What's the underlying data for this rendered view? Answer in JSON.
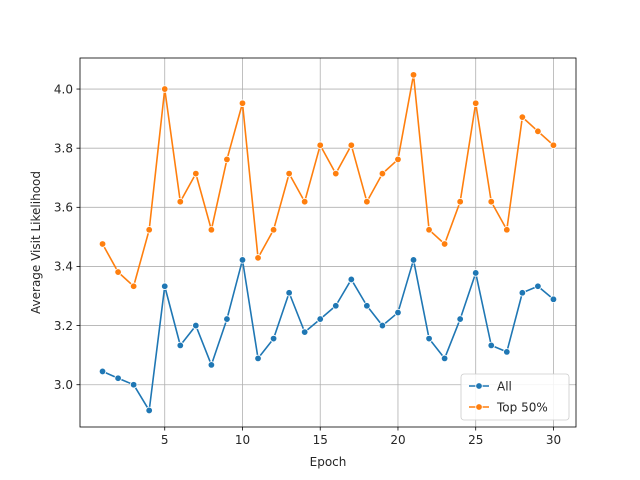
{
  "chart_data": {
    "type": "line",
    "title": "",
    "xlabel": "Epoch",
    "ylabel": "Average Visit Likelihood",
    "x": [
      1,
      2,
      3,
      4,
      5,
      6,
      7,
      8,
      9,
      10,
      11,
      12,
      13,
      14,
      15,
      16,
      17,
      18,
      19,
      20,
      21,
      22,
      23,
      24,
      25,
      26,
      27,
      28,
      29,
      30
    ],
    "series": [
      {
        "name": "All",
        "color": "#1f77b4",
        "marker": "circle",
        "values": [
          3.045,
          3.022,
          3.0,
          2.913,
          3.333,
          3.133,
          3.2,
          3.067,
          3.222,
          3.422,
          3.089,
          3.156,
          3.311,
          3.178,
          3.222,
          3.267,
          3.356,
          3.267,
          3.2,
          3.244,
          3.422,
          3.156,
          3.089,
          3.222,
          3.378,
          3.133,
          3.111,
          3.311,
          3.333,
          3.289
        ]
      },
      {
        "name": "Top 50%",
        "color": "#ff7f0e",
        "marker": "circle",
        "values": [
          3.476,
          3.381,
          3.333,
          3.524,
          4.0,
          3.619,
          3.714,
          3.524,
          3.762,
          3.952,
          3.429,
          3.524,
          3.714,
          3.619,
          3.81,
          3.714,
          3.81,
          3.619,
          3.714,
          3.762,
          4.048,
          3.524,
          3.476,
          3.619,
          3.952,
          3.619,
          3.524,
          3.905,
          3.857,
          3.81
        ]
      }
    ],
    "xlim": [
      -0.45,
      31.45
    ],
    "ylim": [
      2.857,
      4.105
    ],
    "xticks": [
      5,
      10,
      15,
      20,
      25,
      30
    ],
    "xtick_labels": [
      "5",
      "10",
      "15",
      "20",
      "25",
      "30"
    ],
    "yticks": [
      3.0,
      3.2,
      3.4,
      3.6,
      3.8,
      4.0
    ],
    "ytick_labels": [
      "3.0",
      "3.2",
      "3.4",
      "3.6",
      "3.8",
      "4.0"
    ],
    "grid": true,
    "legend_position": "lower-right"
  }
}
